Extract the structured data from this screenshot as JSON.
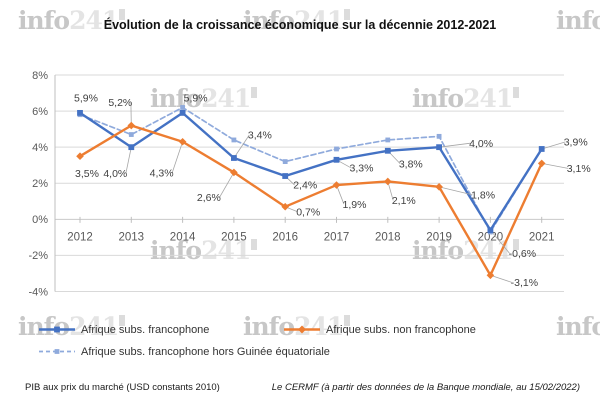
{
  "watermark": {
    "part1": "info",
    "part2": "241"
  },
  "chart_data": {
    "type": "line",
    "title": "Évolution de la croissance économique sur la décennie 2012-2021",
    "categories": [
      "2012",
      "2013",
      "2014",
      "2015",
      "2016",
      "2017",
      "2018",
      "2019",
      "2020",
      "2021"
    ],
    "series": [
      {
        "name": "Afrique subs. francophone",
        "color": "#4472C4",
        "line_style": "solid",
        "marker": "square",
        "values": [
          5.9,
          4.0,
          5.9,
          3.4,
          2.4,
          3.3,
          3.8,
          4.0,
          -0.6,
          3.9
        ],
        "data_labels": [
          "5,9%",
          "4,0%",
          "5,9%",
          "3,4%",
          "2,4%",
          "3,3%",
          "3,8%",
          "4,0%",
          "-0,6%",
          "3,9%"
        ]
      },
      {
        "name": "Afrique subs. non francophone",
        "color": "#ED7D31",
        "line_style": "solid",
        "marker": "diamond",
        "values": [
          3.5,
          5.2,
          4.3,
          2.6,
          0.7,
          1.9,
          2.1,
          1.8,
          -3.1,
          3.1
        ],
        "data_labels": [
          "3,5%",
          "5,2%",
          "4,3%",
          "2,6%",
          "0,7%",
          "1,9%",
          "2,1%",
          "1,8%",
          "-3,1%",
          "3,1%"
        ]
      },
      {
        "name": "Afrique subs. francophone hors Guinée équatoriale",
        "color": "#8FAADC",
        "line_style": "dashed",
        "marker": "square",
        "values": [
          5.8,
          4.7,
          6.2,
          4.4,
          3.2,
          3.9,
          4.4,
          4.6,
          -0.7,
          3.9
        ],
        "data_labels": null
      }
    ],
    "ylim": [
      -4,
      8
    ],
    "ytick_step": 2,
    "ytick_labels": [
      "8%",
      "6%",
      "4%",
      "2%",
      "0%",
      "-2%",
      "-4%"
    ],
    "grid": true,
    "legend_position": "bottom",
    "label_offsets": [
      [
        [
          6,
          -15
        ],
        [
          -16,
          26
        ],
        [
          13,
          -15
        ],
        [
          26,
          -23
        ],
        [
          20,
          9
        ],
        [
          25,
          8
        ],
        [
          23,
          13
        ],
        [
          42,
          -4
        ],
        [
          32,
          23
        ],
        [
          34,
          -7
        ]
      ],
      [
        [
          7,
          17
        ],
        [
          -11,
          -23
        ],
        [
          -21,
          31
        ],
        [
          -25,
          25
        ],
        [
          23,
          5
        ],
        [
          18,
          19
        ],
        [
          16,
          19
        ],
        [
          44,
          8
        ],
        [
          34,
          7
        ],
        [
          37,
          5
        ]
      ]
    ],
    "label_leaders": [
      [
        false,
        true,
        true,
        true,
        true,
        true,
        true,
        true,
        true,
        true
      ],
      [
        false,
        true,
        true,
        true,
        true,
        true,
        true,
        true,
        true,
        true
      ]
    ]
  },
  "footer": {
    "left": "PIB aux prix du marché (USD constants 2010)",
    "right": "Le CERMF (à partir des données de la Banque mondiale, au 15/02/2022)"
  }
}
